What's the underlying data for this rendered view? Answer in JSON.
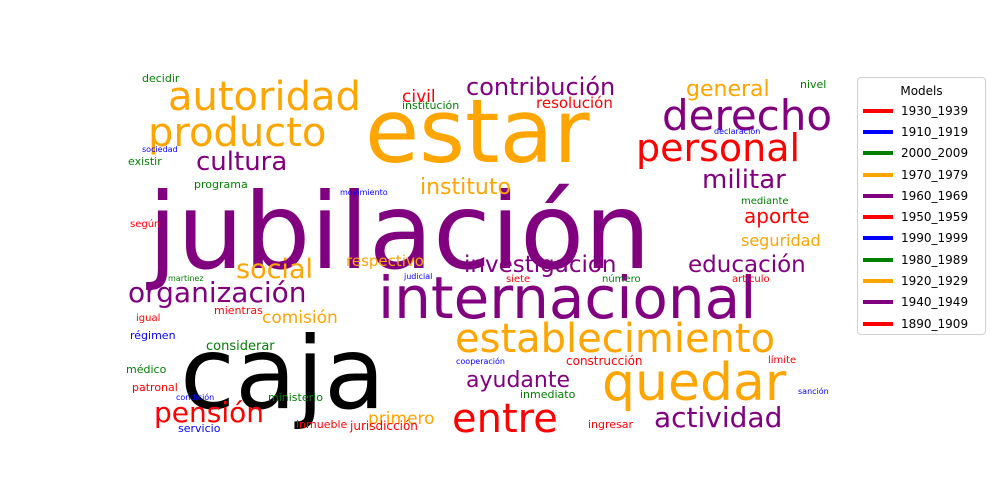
{
  "chart_data": {
    "type": "wordcloud",
    "legend": {
      "title": "Models",
      "placement": "right",
      "entries": [
        {
          "label": "1930_1939",
          "color": "#ff0000"
        },
        {
          "label": "1910_1919",
          "color": "#0000ff"
        },
        {
          "label": "2000_2009",
          "color": "#008000"
        },
        {
          "label": "1970_1979",
          "color": "#ffa500"
        },
        {
          "label": "1960_1969",
          "color": "#800080"
        },
        {
          "label": "1950_1959",
          "color": "#ff0000"
        },
        {
          "label": "1990_1999",
          "color": "#0000ff"
        },
        {
          "label": "1980_1989",
          "color": "#008000"
        },
        {
          "label": "1920_1929",
          "color": "#ffa500"
        },
        {
          "label": "1940_1949",
          "color": "#800080"
        },
        {
          "label": "1890_1909",
          "color": "#ff0000"
        }
      ]
    },
    "words": [
      {
        "text": "jubilación",
        "color": "#800080",
        "weight": 100
      },
      {
        "text": "caja",
        "color": "#000000",
        "weight": 98
      },
      {
        "text": "estar",
        "color": "#ffa500",
        "weight": 78
      },
      {
        "text": "internacional",
        "color": "#800080",
        "weight": 56
      },
      {
        "text": "quedar",
        "color": "#ffa500",
        "weight": 48
      },
      {
        "text": "establecimiento",
        "color": "#ffa500",
        "weight": 42
      },
      {
        "text": "derecho",
        "color": "#800080",
        "weight": 42
      },
      {
        "text": "producto",
        "color": "#ffa500",
        "weight": 40
      },
      {
        "text": "entre",
        "color": "#ff0000",
        "weight": 40
      },
      {
        "text": "autoridad",
        "color": "#ffa500",
        "weight": 40
      },
      {
        "text": "personal",
        "color": "#ff0000",
        "weight": 38
      },
      {
        "text": "organización",
        "color": "#800080",
        "weight": 30
      },
      {
        "text": "pensión",
        "color": "#ff0000",
        "weight": 28
      },
      {
        "text": "actividad",
        "color": "#800080",
        "weight": 28
      },
      {
        "text": "social",
        "color": "#ffa500",
        "weight": 26
      },
      {
        "text": "cultura",
        "color": "#800080",
        "weight": 25
      },
      {
        "text": "militar",
        "color": "#800080",
        "weight": 25
      },
      {
        "text": "contribución",
        "color": "#800080",
        "weight": 24
      },
      {
        "text": "investigación",
        "color": "#800080",
        "weight": 23
      },
      {
        "text": "educación",
        "color": "#800080",
        "weight": 23
      },
      {
        "text": "ayudante",
        "color": "#800080",
        "weight": 22
      },
      {
        "text": "general",
        "color": "#ffa500",
        "weight": 21
      },
      {
        "text": "instituto",
        "color": "#ffa500",
        "weight": 21
      },
      {
        "text": "aporte",
        "color": "#ff0000",
        "weight": 20
      },
      {
        "text": "civil",
        "color": "#ff0000",
        "weight": 17
      },
      {
        "text": "comisión",
        "color": "#ffa500",
        "weight": 17
      },
      {
        "text": "primero",
        "color": "#ffa500",
        "weight": 16
      },
      {
        "text": "seguridad",
        "color": "#ffa500",
        "weight": 16
      },
      {
        "text": "respectivo",
        "color": "#ffa500",
        "weight": 15
      },
      {
        "text": "resolución",
        "color": "#ff0000",
        "weight": 15
      },
      {
        "text": "considerar",
        "color": "#008000",
        "weight": 13
      },
      {
        "text": "jurisdicción",
        "color": "#ff0000",
        "weight": 12
      },
      {
        "text": "construcción",
        "color": "#ff0000",
        "weight": 12
      },
      {
        "text": "decidir",
        "color": "#008000",
        "weight": 11
      },
      {
        "text": "institución",
        "color": "#008000",
        "weight": 11
      },
      {
        "text": "existir",
        "color": "#008000",
        "weight": 11
      },
      {
        "text": "programa",
        "color": "#008000",
        "weight": 11
      },
      {
        "text": "mientras",
        "color": "#ff0000",
        "weight": 11
      },
      {
        "text": "régimen",
        "color": "#0000ff",
        "weight": 11
      },
      {
        "text": "médico",
        "color": "#008000",
        "weight": 11
      },
      {
        "text": "patronal",
        "color": "#ff0000",
        "weight": 11
      },
      {
        "text": "servicio",
        "color": "#0000ff",
        "weight": 11
      },
      {
        "text": "ministerio",
        "color": "#008000",
        "weight": 11
      },
      {
        "text": "inmediato",
        "color": "#008000",
        "weight": 11
      },
      {
        "text": "inmueble",
        "color": "#ff0000",
        "weight": 11
      },
      {
        "text": "ingresar",
        "color": "#ff0000",
        "weight": 11
      },
      {
        "text": "nivel",
        "color": "#008000",
        "weight": 11
      },
      {
        "text": "según",
        "color": "#ff0000",
        "weight": 10
      },
      {
        "text": "igual",
        "color": "#ff0000",
        "weight": 10
      },
      {
        "text": "mediante",
        "color": "#008000",
        "weight": 10
      },
      {
        "text": "siete",
        "color": "#ff0000",
        "weight": 10
      },
      {
        "text": "número",
        "color": "#008000",
        "weight": 10
      },
      {
        "text": "artículo",
        "color": "#ff0000",
        "weight": 10
      },
      {
        "text": "límite",
        "color": "#ff0000",
        "weight": 10
      },
      {
        "text": "sociedad",
        "color": "#0000ff",
        "weight": 8
      },
      {
        "text": "declaración",
        "color": "#0000ff",
        "weight": 8
      },
      {
        "text": "movimiento",
        "color": "#0000ff",
        "weight": 8
      },
      {
        "text": "martinez",
        "color": "#008000",
        "weight": 8
      },
      {
        "text": "judicial",
        "color": "#0000ff",
        "weight": 8
      },
      {
        "text": "cooperación",
        "color": "#0000ff",
        "weight": 8
      },
      {
        "text": "condición",
        "color": "#0000ff",
        "weight": 8
      },
      {
        "text": "sanción",
        "color": "#0000ff",
        "weight": 8
      }
    ]
  }
}
